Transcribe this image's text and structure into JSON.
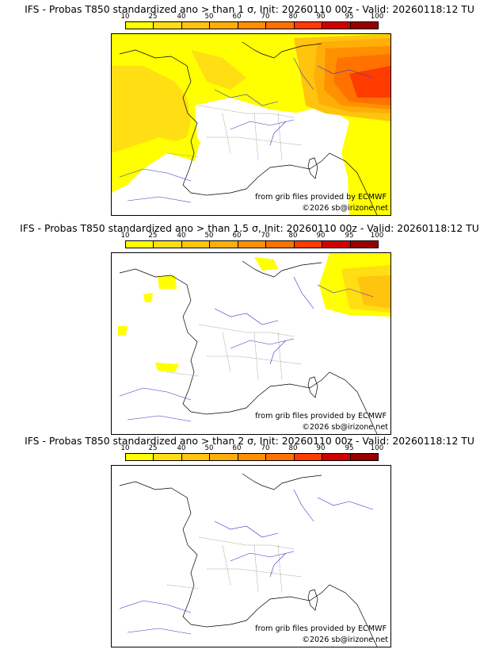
{
  "colorbar": {
    "labels": [
      "10",
      "25",
      "40",
      "50",
      "60",
      "70",
      "80",
      "90",
      "95",
      "100"
    ],
    "colors": [
      "#ffff00",
      "#ffde14",
      "#ffc40e",
      "#ffae08",
      "#ff9000",
      "#ff7200",
      "#ff3b00",
      "#d10000",
      "#9a0000",
      "#5a0000"
    ]
  },
  "panels": [
    {
      "title": "IFS - Probas T850  standardized ano > than 1 σ, Init: 20260110 00z - Valid: 20260118:12 TU",
      "credit": "from grib files provided by ECMWF",
      "copyright": "©2026 sb@irizone.net"
    },
    {
      "title": "IFS - Probas T850  standardized ano > than 1.5 σ, Init: 20260110 00z - Valid: 20260118:12 TU",
      "credit": "from grib files provided by ECMWF",
      "copyright": "©2026 sb@irizone.net"
    },
    {
      "title": "IFS - Probas T850  standardized ano > than 2 σ, Init: 20260110 00z - Valid: 20260118:12 TU",
      "credit": "from grib files provided by ECMWF",
      "copyright": "©2026 sb@irizone.net"
    }
  ]
}
